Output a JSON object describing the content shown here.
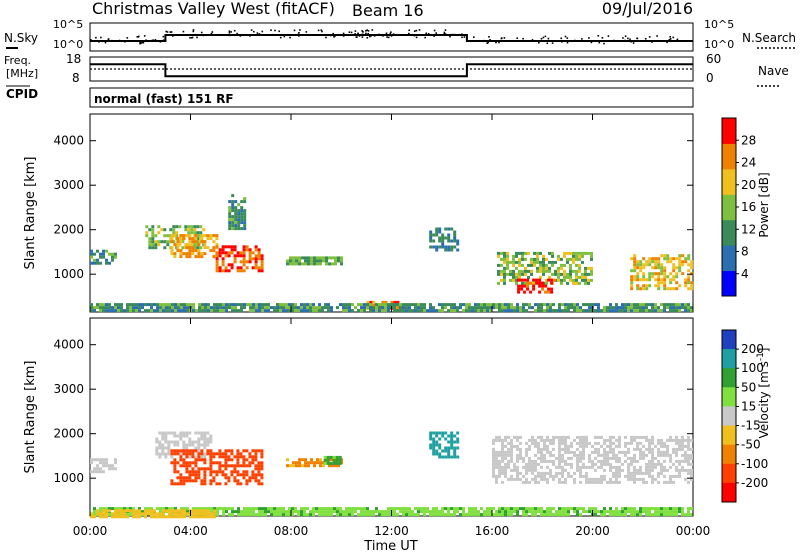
{
  "header": {
    "station": "Christmas Valley West (fitACF)",
    "beam": "Beam 16",
    "date": "09/Jul/2016"
  },
  "noise_panel": {
    "left_label": "N.Sky",
    "right_label": "N.Search",
    "tick_top": "10^5",
    "tick_bottom": "10^0"
  },
  "freq_panel": {
    "left_label_1": "Freq.",
    "left_label_2": "[MHz]",
    "cpid_label": "CPID",
    "ticks_left": [
      "18",
      "8"
    ],
    "ticks_right": [
      "60",
      "0"
    ],
    "right_label": "Nave",
    "program": "normal (fast) 151 RF"
  },
  "colors": {
    "background": "#ffffff",
    "axis": "#000000"
  },
  "chart_data": [
    {
      "type": "line",
      "xlabel": "",
      "ylabel": "",
      "x_ticks": [
        "00:00",
        "04:00",
        "08:00",
        "12:00",
        "16:00",
        "20:00",
        "00:00"
      ],
      "series": [
        {
          "name": "N.Sky",
          "x": [
            0,
            3,
            3,
            15,
            15,
            24
          ],
          "y": [
            0.5,
            0.5,
            1.0,
            1.0,
            0.5,
            0.5
          ]
        }
      ]
    },
    {
      "type": "line",
      "series": [
        {
          "name": "Freq.",
          "x": [
            0,
            3,
            3,
            15,
            15,
            24
          ],
          "y": [
            15,
            15,
            10,
            10,
            15,
            15
          ]
        },
        {
          "name": "Nave",
          "x": [
            0,
            24
          ],
          "y": [
            30,
            30
          ]
        }
      ],
      "ylim_left": [
        8,
        18
      ],
      "ylim_right": [
        0,
        60
      ]
    },
    {
      "type": "heatmap",
      "ylabel": "Slant Range [km]",
      "y_ticks": [
        "1000",
        "2000",
        "3000",
        "4000"
      ],
      "ylim": [
        150,
        4600
      ],
      "xlim": [
        0,
        24
      ],
      "colorbar": {
        "label": "Power [dB]",
        "ticks": [
          "4",
          "8",
          "12",
          "16",
          "20",
          "24",
          "28"
        ],
        "colors": [
          "#0000ff",
          "#2b6fb0",
          "#3a8a5a",
          "#7fbf3f",
          "#f0c020",
          "#f08000",
          "#ff0000"
        ]
      },
      "regions": [
        {
          "x": [
            0.0,
            1.0
          ],
          "y": [
            1250,
            1550
          ],
          "v": 12
        },
        {
          "x": [
            2.2,
            4.5
          ],
          "y": [
            1600,
            2100
          ],
          "v": 16
        },
        {
          "x": [
            3.2,
            5.0
          ],
          "y": [
            1400,
            1900
          ],
          "v": 22
        },
        {
          "x": [
            5.0,
            6.8
          ],
          "y": [
            1100,
            1650
          ],
          "v": 26
        },
        {
          "x": [
            5.5,
            6.2
          ],
          "y": [
            2000,
            2800
          ],
          "v": 12
        },
        {
          "x": [
            7.8,
            10.0
          ],
          "y": [
            1200,
            1400
          ],
          "v": 14
        },
        {
          "x": [
            11.0,
            12.4
          ],
          "y": [
            200,
            400
          ],
          "v": 24
        },
        {
          "x": [
            13.5,
            14.6
          ],
          "y": [
            1550,
            2050
          ],
          "v": 10
        },
        {
          "x": [
            16.2,
            20.0
          ],
          "y": [
            800,
            1500
          ],
          "v": 16
        },
        {
          "x": [
            17.0,
            18.5
          ],
          "y": [
            600,
            900
          ],
          "v": 28
        },
        {
          "x": [
            21.5,
            24.0
          ],
          "y": [
            700,
            1450
          ],
          "v": 20
        },
        {
          "x": [
            0.0,
            24.0
          ],
          "y": [
            150,
            350
          ],
          "v": 12
        }
      ]
    },
    {
      "type": "heatmap",
      "ylabel": "Slant Range [km]",
      "xlabel": "Time UT",
      "y_ticks": [
        "1000",
        "2000",
        "3000",
        "4000"
      ],
      "ylim": [
        150,
        4600
      ],
      "xlim": [
        0,
        24
      ],
      "colorbar": {
        "label": "Velocity [m s^-1]",
        "ticks": [
          "200",
          "100",
          "50",
          "15",
          "-15",
          "-50",
          "-100",
          "-200"
        ],
        "colors": [
          "#2040c0",
          "#20a0a0",
          "#30a030",
          "#80e040",
          "#c8c8c8",
          "#f0c020",
          "#f08000",
          "#ff4000",
          "#ff0000"
        ]
      },
      "regions": [
        {
          "x": [
            0.0,
            1.0
          ],
          "y": [
            1150,
            1450
          ],
          "v": 0
        },
        {
          "x": [
            2.6,
            4.8
          ],
          "y": [
            1500,
            2050
          ],
          "v": 0
        },
        {
          "x": [
            3.2,
            6.8
          ],
          "y": [
            900,
            1650
          ],
          "v": -120
        },
        {
          "x": [
            7.8,
            10.0
          ],
          "y": [
            1250,
            1450
          ],
          "v": -60
        },
        {
          "x": [
            9.3,
            10.0
          ],
          "y": [
            1350,
            1500
          ],
          "v": 60
        },
        {
          "x": [
            13.5,
            14.6
          ],
          "y": [
            1500,
            2050
          ],
          "v": 120
        },
        {
          "x": [
            16.0,
            24.0
          ],
          "y": [
            900,
            1950
          ],
          "v": 0
        },
        {
          "x": [
            0.0,
            24.0
          ],
          "y": [
            150,
            350
          ],
          "v": 40
        },
        {
          "x": [
            0.0,
            5.0
          ],
          "y": [
            150,
            300
          ],
          "v": -30
        }
      ]
    }
  ]
}
